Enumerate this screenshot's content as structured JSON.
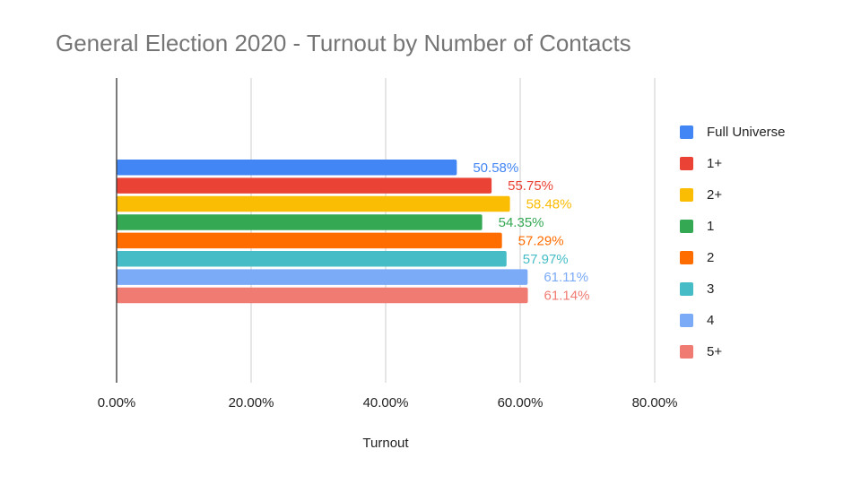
{
  "chart_data": {
    "type": "bar",
    "orientation": "horizontal",
    "title": "General Election 2020 - Turnout by Number of Contacts",
    "xlabel": "Turnout",
    "ylabel": "",
    "xlim": [
      0,
      80
    ],
    "x_ticks": [
      "0.00%",
      "20.00%",
      "40.00%",
      "60.00%",
      "80.00%"
    ],
    "grid": true,
    "legend_position": "right",
    "series": [
      {
        "name": "Full Universe",
        "value": 50.58,
        "label": "50.58%",
        "color": "#4285f4"
      },
      {
        "name": "1+",
        "value": 55.75,
        "label": "55.75%",
        "color": "#ea4335"
      },
      {
        "name": "2+",
        "value": 58.48,
        "label": "58.48%",
        "color": "#fbbc04"
      },
      {
        "name": "1",
        "value": 54.35,
        "label": "54.35%",
        "color": "#34a853"
      },
      {
        "name": "2",
        "value": 57.29,
        "label": "57.29%",
        "color": "#ff6d01"
      },
      {
        "name": "3",
        "value": 57.97,
        "label": "57.97%",
        "color": "#46bdc6"
      },
      {
        "name": "4",
        "value": 61.11,
        "label": "61.11%",
        "color": "#7baaf7"
      },
      {
        "name": "5+",
        "value": 61.14,
        "label": "61.14%",
        "color": "#f07b72"
      }
    ]
  }
}
